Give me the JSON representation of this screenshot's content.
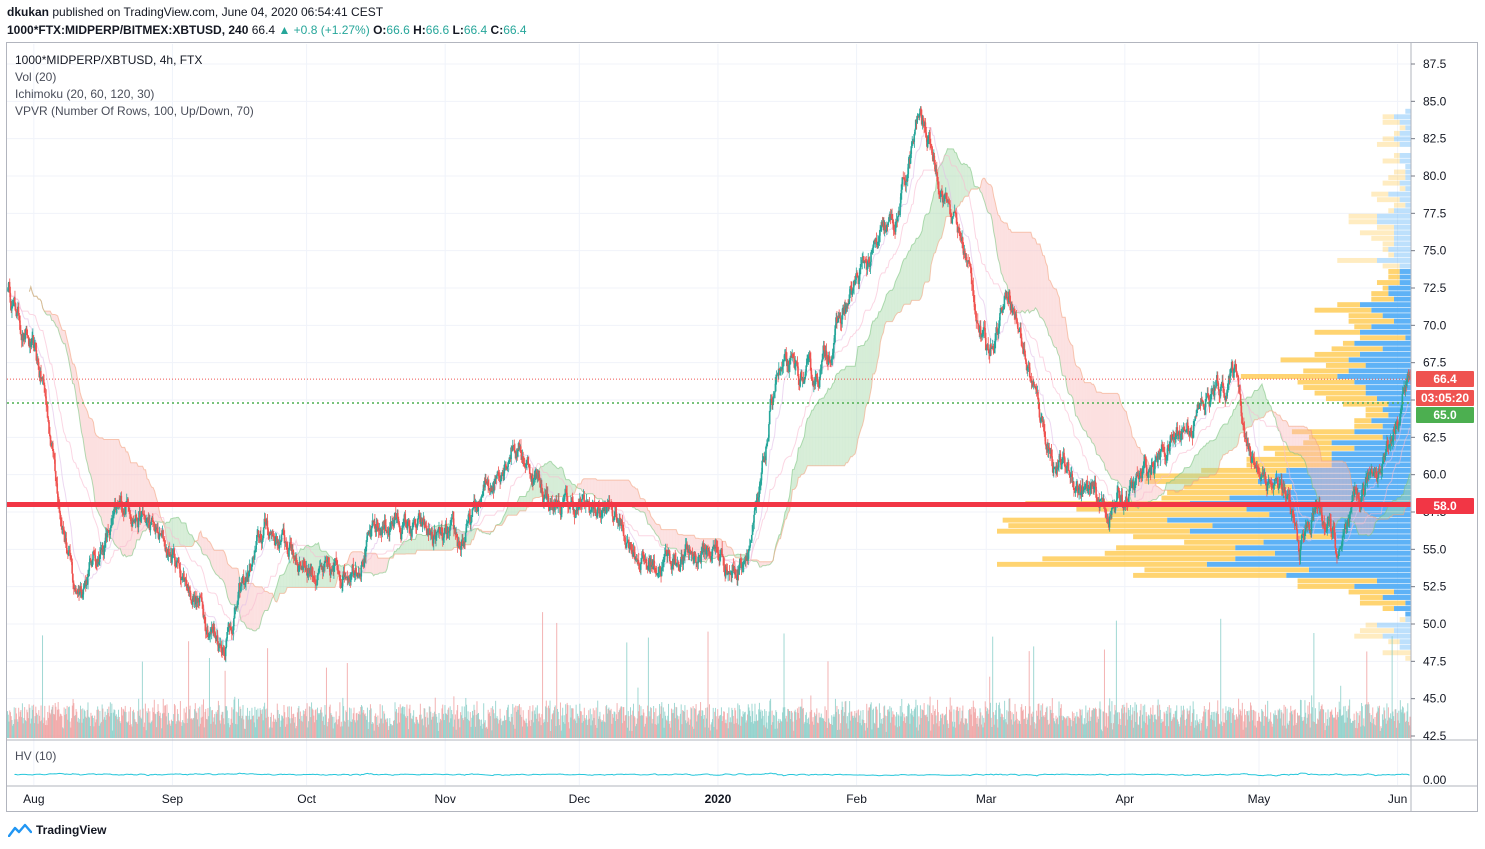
{
  "header": {
    "publisher": "dkukan",
    "published_text": "published on TradingView.com, June 04, 2020 06:54:41 CEST",
    "symbol": "1000*FTX:MIDPERP/BITMEX:XBTUSD, 240",
    "last": "66.4",
    "change": "+0.8 (+1.27%)",
    "o_label": "O:",
    "o_value": "66.6",
    "h_label": "H:",
    "h_value": "66.6",
    "l_label": "L:",
    "l_value": "66.4",
    "c_label": "C:",
    "c_value": "66.4"
  },
  "legend": {
    "title": "1000*MIDPERP/XBTUSD, 4h, FTX",
    "vol": "Vol (20)",
    "ichimoku": "Ichimoku (20, 60, 120, 30)",
    "vpvr": "VPVR (Number Of Rows, 100, Up/Down, 70)"
  },
  "hv_panel": {
    "label": "HV (10)",
    "tick_label": "0.00"
  },
  "price_badges": {
    "last_price": "66.4",
    "countdown": "03:05:20",
    "green_level": "65.0",
    "support_level": "58.0"
  },
  "branding": {
    "name": "TradingView"
  },
  "colors": {
    "up": "#26a69a",
    "down": "#ef5350",
    "support": "#f23645",
    "vpvr_up": "#42a5f5",
    "vpvr_down": "#ffc94d",
    "green_badge": "#4caf50"
  },
  "chart_data": {
    "type": "candlestick",
    "y_ticks": [
      "87.5",
      "85.0",
      "82.5",
      "80.0",
      "77.5",
      "75.0",
      "72.5",
      "70.0",
      "67.5",
      "65.0",
      "62.5",
      "60.0",
      "57.5",
      "55.0",
      "52.5",
      "50.0",
      "47.5",
      "45.0",
      "42.5"
    ],
    "x_ticks": [
      "Aug",
      "Sep",
      "Oct",
      "Nov",
      "Dec",
      "2020",
      "Feb",
      "Mar",
      "Apr",
      "May",
      "Jun"
    ],
    "ylim": [
      42.5,
      87.5
    ],
    "key_points": [
      {
        "t": "Jul 26",
        "price": 72.7
      },
      {
        "t": "Aug 3",
        "price": 66.0
      },
      {
        "t": "Aug 10",
        "price": 52.0
      },
      {
        "t": "Aug 22",
        "price": 58.3
      },
      {
        "t": "Sep 2",
        "price": 54.0
      },
      {
        "t": "Sep 12",
        "price": 48.7
      },
      {
        "t": "Sep 22",
        "price": 56.5
      },
      {
        "t": "Oct 6",
        "price": 52.8
      },
      {
        "t": "Oct 20",
        "price": 57.0
      },
      {
        "t": "Oct 27",
        "price": 56.0
      },
      {
        "t": "Nov 4",
        "price": 55.0
      },
      {
        "t": "Nov 16",
        "price": 62.5
      },
      {
        "t": "Nov 25",
        "price": 58.0
      },
      {
        "t": "Dec 8",
        "price": 57.5
      },
      {
        "t": "Dec 16",
        "price": 54.0
      },
      {
        "t": "Dec 31",
        "price": 55.0
      },
      {
        "t": "Jan 5",
        "price": 53.5
      },
      {
        "t": "Jan 10",
        "price": 57.5
      },
      {
        "t": "Jan 14",
        "price": 67.0
      },
      {
        "t": "Jan 22",
        "price": 66.0
      },
      {
        "t": "Feb 2",
        "price": 73.5
      },
      {
        "t": "Feb 10",
        "price": 77.0
      },
      {
        "t": "Feb 15",
        "price": 84.0
      },
      {
        "t": "Feb 25",
        "price": 75.0
      },
      {
        "t": "Mar 1",
        "price": 68.0
      },
      {
        "t": "Mar 6",
        "price": 72.8
      },
      {
        "t": "Mar 12",
        "price": 65.0
      },
      {
        "t": "Mar 16",
        "price": 61.0
      },
      {
        "t": "Mar 28",
        "price": 57.5
      },
      {
        "t": "Apr 3",
        "price": 59.0
      },
      {
        "t": "Apr 12",
        "price": 62.5
      },
      {
        "t": "Apr 26",
        "price": 67.0
      },
      {
        "t": "Apr 29",
        "price": 61.0
      },
      {
        "t": "May 6",
        "price": 59.0
      },
      {
        "t": "May 10",
        "price": 55.0
      },
      {
        "t": "May 14",
        "price": 58.0
      },
      {
        "t": "May 19",
        "price": 54.5
      },
      {
        "t": "May 26",
        "price": 60.0
      },
      {
        "t": "May 30",
        "price": 62.0
      },
      {
        "t": "Jun 3",
        "price": 66.4
      }
    ],
    "support_line": 58.0,
    "dotted_green_line": 64.8,
    "last_price_line": 66.4
  }
}
